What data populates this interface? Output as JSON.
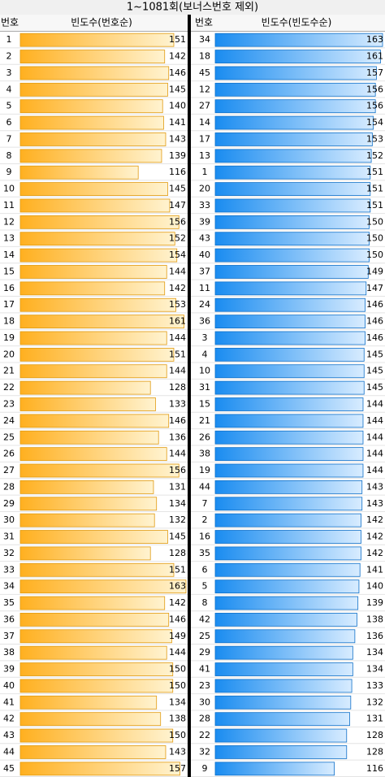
{
  "title": "1~1081회(보너스번호 제외)",
  "left": {
    "headers": [
      "번호",
      "빈도수(번호순)"
    ],
    "rows": [
      {
        "number": 1,
        "count": 151
      },
      {
        "number": 2,
        "count": 142
      },
      {
        "number": 3,
        "count": 146
      },
      {
        "number": 4,
        "count": 145
      },
      {
        "number": 5,
        "count": 140
      },
      {
        "number": 6,
        "count": 141
      },
      {
        "number": 7,
        "count": 143
      },
      {
        "number": 8,
        "count": 139
      },
      {
        "number": 9,
        "count": 116
      },
      {
        "number": 10,
        "count": 145
      },
      {
        "number": 11,
        "count": 147
      },
      {
        "number": 12,
        "count": 156
      },
      {
        "number": 13,
        "count": 152
      },
      {
        "number": 14,
        "count": 154
      },
      {
        "number": 15,
        "count": 144
      },
      {
        "number": 16,
        "count": 142
      },
      {
        "number": 17,
        "count": 153
      },
      {
        "number": 18,
        "count": 161
      },
      {
        "number": 19,
        "count": 144
      },
      {
        "number": 20,
        "count": 151
      },
      {
        "number": 21,
        "count": 144
      },
      {
        "number": 22,
        "count": 128
      },
      {
        "number": 23,
        "count": 133
      },
      {
        "number": 24,
        "count": 146
      },
      {
        "number": 25,
        "count": 136
      },
      {
        "number": 26,
        "count": 144
      },
      {
        "number": 27,
        "count": 156
      },
      {
        "number": 28,
        "count": 131
      },
      {
        "number": 29,
        "count": 134
      },
      {
        "number": 30,
        "count": 132
      },
      {
        "number": 31,
        "count": 145
      },
      {
        "number": 32,
        "count": 128
      },
      {
        "number": 33,
        "count": 151
      },
      {
        "number": 34,
        "count": 163
      },
      {
        "number": 35,
        "count": 142
      },
      {
        "number": 36,
        "count": 146
      },
      {
        "number": 37,
        "count": 149
      },
      {
        "number": 38,
        "count": 144
      },
      {
        "number": 39,
        "count": 150
      },
      {
        "number": 40,
        "count": 150
      },
      {
        "number": 41,
        "count": 134
      },
      {
        "number": 42,
        "count": 138
      },
      {
        "number": 43,
        "count": 150
      },
      {
        "number": 44,
        "count": 143
      },
      {
        "number": 45,
        "count": 157
      }
    ]
  },
  "right": {
    "headers": [
      "번호",
      "빈도수(빈도수순)"
    ],
    "rows": [
      {
        "number": 34,
        "count": 163
      },
      {
        "number": 18,
        "count": 161
      },
      {
        "number": 45,
        "count": 157
      },
      {
        "number": 12,
        "count": 156
      },
      {
        "number": 27,
        "count": 156
      },
      {
        "number": 14,
        "count": 154
      },
      {
        "number": 17,
        "count": 153
      },
      {
        "number": 13,
        "count": 152
      },
      {
        "number": 1,
        "count": 151
      },
      {
        "number": 20,
        "count": 151
      },
      {
        "number": 33,
        "count": 151
      },
      {
        "number": 39,
        "count": 150
      },
      {
        "number": 43,
        "count": 150
      },
      {
        "number": 40,
        "count": 150
      },
      {
        "number": 37,
        "count": 149
      },
      {
        "number": 11,
        "count": 147
      },
      {
        "number": 24,
        "count": 146
      },
      {
        "number": 36,
        "count": 146
      },
      {
        "number": 3,
        "count": 146
      },
      {
        "number": 4,
        "count": 145
      },
      {
        "number": 10,
        "count": 145
      },
      {
        "number": 31,
        "count": 145
      },
      {
        "number": 15,
        "count": 144
      },
      {
        "number": 21,
        "count": 144
      },
      {
        "number": 26,
        "count": 144
      },
      {
        "number": 38,
        "count": 144
      },
      {
        "number": 19,
        "count": 144
      },
      {
        "number": 44,
        "count": 143
      },
      {
        "number": 7,
        "count": 143
      },
      {
        "number": 2,
        "count": 142
      },
      {
        "number": 16,
        "count": 142
      },
      {
        "number": 35,
        "count": 142
      },
      {
        "number": 6,
        "count": 141
      },
      {
        "number": 5,
        "count": 140
      },
      {
        "number": 8,
        "count": 139
      },
      {
        "number": 42,
        "count": 138
      },
      {
        "number": 25,
        "count": 136
      },
      {
        "number": 29,
        "count": 134
      },
      {
        "number": 41,
        "count": 134
      },
      {
        "number": 23,
        "count": 133
      },
      {
        "number": 30,
        "count": 132
      },
      {
        "number": 28,
        "count": 131
      },
      {
        "number": 22,
        "count": 128
      },
      {
        "number": 32,
        "count": 128
      },
      {
        "number": 9,
        "count": 116
      }
    ]
  }
}
